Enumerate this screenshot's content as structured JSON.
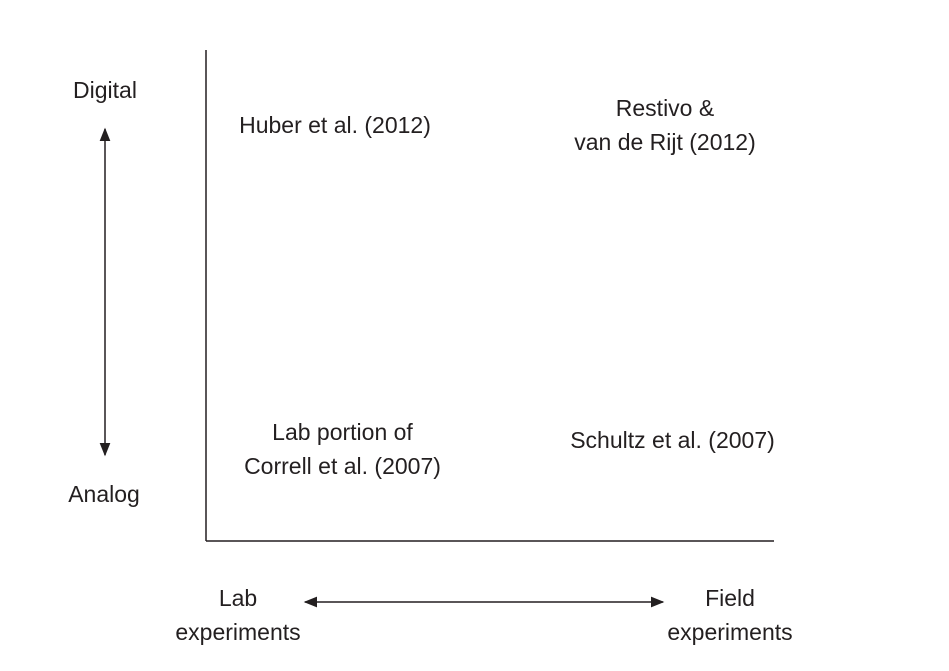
{
  "y_axis": {
    "top_label": "Digital",
    "bottom_label": "Analog"
  },
  "x_axis": {
    "left_label": [
      "Lab",
      "experiments"
    ],
    "right_label": [
      "Field",
      "experiments"
    ]
  },
  "quadrants": {
    "top_left": [
      "Huber et al. (2012)"
    ],
    "top_right": [
      "Restivo &",
      "van de Rijt (2012)"
    ],
    "bottom_left": [
      "Lab portion of",
      "Correll et al. (2007)"
    ],
    "bottom_right": [
      "Schultz et al. (2007)"
    ]
  },
  "colors": {
    "ink": "#231f20",
    "background": "#ffffff"
  }
}
